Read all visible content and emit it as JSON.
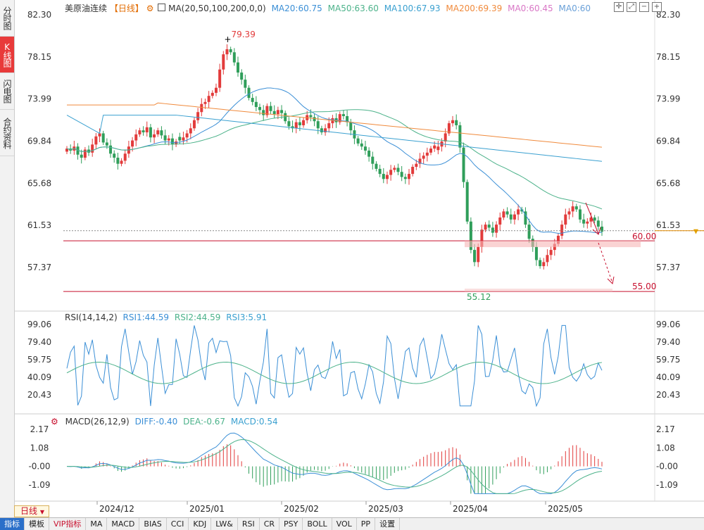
{
  "sidebar": {
    "tabs": [
      {
        "label": "分时图",
        "active": false
      },
      {
        "label": "K线图",
        "active": true
      },
      {
        "label": "闪电图",
        "active": false
      },
      {
        "label": "合约资料",
        "active": false
      }
    ]
  },
  "header": {
    "symbol": "美原油连续",
    "period_tag": "【日线】",
    "ma_label": "MA(20,50,100,200,0,0)",
    "ma20": "MA20:60.75",
    "ma50": "MA50:63.60",
    "ma100": "MA100:67.93",
    "ma200": "MA200:69.39",
    "ma_a": "MA0:60.45",
    "ma_b": "MA0:60"
  },
  "price_axis": [
    "82.30",
    "78.15",
    "73.99",
    "69.84",
    "65.68",
    "61.53",
    "57.37"
  ],
  "annotations": {
    "high": "79.39",
    "low": "55.12",
    "level1": "60.00",
    "level2": "55.00"
  },
  "rsi": {
    "label": "RSI(14,14,2)",
    "rsi1": "RSI1:44.59",
    "rsi2": "RSI2:44.59",
    "rsi3": "RSI3:5.91",
    "axis": [
      "99.06",
      "79.40",
      "59.75",
      "40.09",
      "20.43"
    ]
  },
  "macd": {
    "label": "MACD(26,12,9)",
    "diff": "DIFF:-0.40",
    "dea": "DEA:-0.67",
    "macd": "MACD:0.54",
    "axis": [
      "2.17",
      "1.08",
      "-0.00",
      "-1.09"
    ]
  },
  "date_axis": [
    "2024/12",
    "2025/01",
    "2025/02",
    "2025/03",
    "2025/04",
    "2025/05"
  ],
  "period_button": "日线",
  "bottom_tabs": [
    {
      "label": "指标",
      "active": true
    },
    {
      "label": "模板"
    },
    {
      "label": "VIP指标",
      "vip": true
    },
    {
      "label": "MA"
    },
    {
      "label": "MACD"
    },
    {
      "label": "BIAS"
    },
    {
      "label": "CCI"
    },
    {
      "label": "KDJ"
    },
    {
      "label": "LW&"
    },
    {
      "label": "RSI"
    },
    {
      "label": "CR"
    },
    {
      "label": "PSY"
    },
    {
      "label": "BOLL"
    },
    {
      "label": "VOL"
    },
    {
      "label": "PP"
    },
    {
      "label": "设置"
    }
  ],
  "toolbar_icons": [
    "crosshair-icon",
    "expand-icon",
    "zoom-out-icon",
    "zoom-in-icon"
  ],
  "colors": {
    "up": "#e23b3b",
    "down": "#2f9e5a",
    "ma20": "#3b8fd6",
    "ma50": "#4cb28a",
    "ma100": "#3aa0d0",
    "ma200": "#f08a3c",
    "ma_a": "#d977c6",
    "ma_b": "#6aa0d8"
  },
  "chart_data": {
    "type": "candlestick",
    "price_high": 79.39,
    "price_low": 55.12,
    "support_levels": [
      60.0,
      55.0
    ],
    "ylim": [
      55.0,
      82.3
    ],
    "close_series": [
      69.1,
      68.9,
      69.3,
      68.5,
      68.2,
      69.0,
      68.7,
      69.5,
      70.3,
      70.6,
      69.7,
      69.4,
      68.6,
      68.2,
      67.6,
      67.9,
      68.6,
      69.3,
      69.9,
      70.5,
      70.9,
      70.7,
      71.2,
      70.2,
      70.5,
      70.9,
      70.4,
      69.9,
      70.1,
      69.5,
      69.8,
      69.9,
      70.2,
      70.6,
      71.1,
      71.9,
      72.7,
      73.5,
      73.7,
      74.3,
      74.6,
      75.1,
      76.9,
      78.4,
      78.9,
      78.6,
      77.6,
      76.6,
      75.9,
      75.1,
      74.1,
      73.7,
      73.2,
      72.9,
      72.4,
      73.3,
      72.8,
      72.5,
      72.9,
      72.6,
      71.8,
      71.3,
      71.1,
      71.7,
      71.4,
      71.9,
      72.4,
      72.2,
      71.8,
      71.1,
      70.7,
      71.1,
      71.6,
      72.1,
      71.7,
      72.5,
      72.3,
      71.7,
      70.9,
      70.1,
      69.6,
      69.3,
      68.9,
      68.3,
      67.6,
      67.1,
      66.6,
      66.1,
      66.5,
      67.0,
      67.2,
      66.8,
      66.3,
      66.1,
      66.6,
      67.3,
      67.6,
      68.1,
      68.4,
      68.7,
      69.1,
      69.4,
      69.3,
      69.8,
      70.6,
      71.6,
      71.9,
      71.4,
      69.2,
      65.8,
      61.9,
      59.1,
      57.9,
      59.4,
      61.1,
      61.6,
      61.3,
      60.8,
      61.6,
      62.3,
      62.9,
      62.6,
      62.1,
      62.6,
      63.1,
      62.9,
      61.6,
      60.2,
      59.4,
      58.1,
      57.5,
      57.9,
      58.6,
      59.1,
      59.7,
      60.5,
      61.6,
      62.6,
      62.9,
      63.4,
      63.1,
      62.1,
      61.7,
      61.9,
      62.3,
      62.0,
      61.4,
      60.9
    ]
  }
}
